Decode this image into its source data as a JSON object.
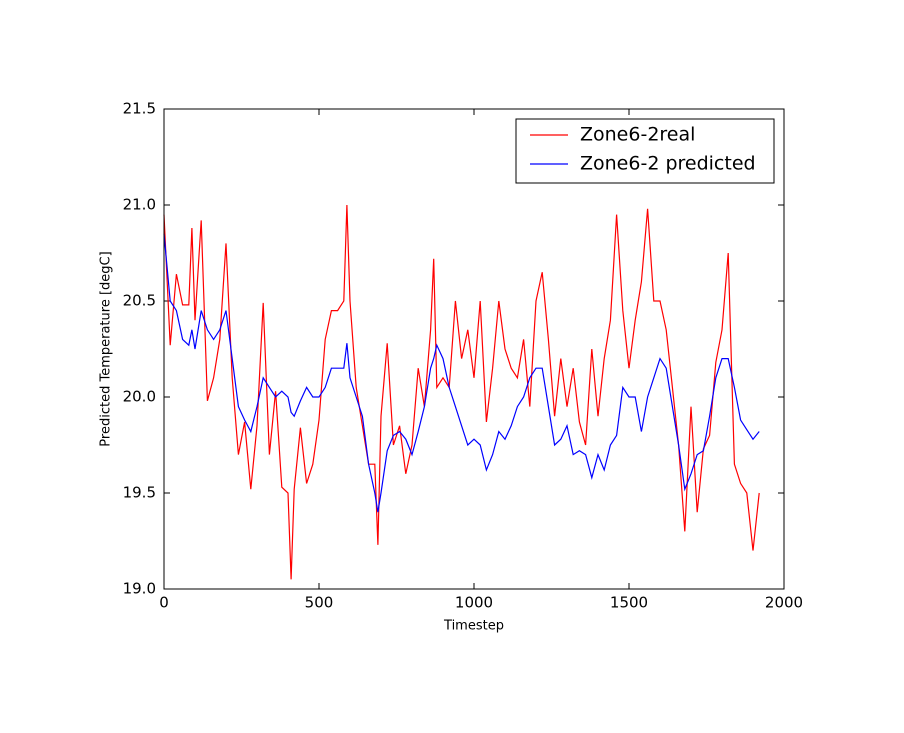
{
  "chart_data": {
    "type": "line",
    "xlabel": "Timestep",
    "ylabel": "Predicted Temperature [degC]",
    "x": [
      0,
      20,
      40,
      60,
      80,
      90,
      100,
      120,
      140,
      160,
      180,
      200,
      220,
      240,
      260,
      280,
      300,
      320,
      340,
      360,
      380,
      400,
      410,
      420,
      440,
      460,
      480,
      500,
      520,
      540,
      560,
      580,
      590,
      600,
      620,
      640,
      660,
      680,
      690,
      700,
      720,
      740,
      760,
      780,
      800,
      820,
      840,
      860,
      870,
      880,
      900,
      920,
      940,
      960,
      980,
      1000,
      1020,
      1040,
      1060,
      1080,
      1100,
      1120,
      1140,
      1160,
      1180,
      1200,
      1220,
      1240,
      1260,
      1280,
      1300,
      1320,
      1340,
      1360,
      1380,
      1400,
      1420,
      1440,
      1460,
      1480,
      1500,
      1520,
      1540,
      1560,
      1580,
      1600,
      1620,
      1640,
      1660,
      1680,
      1700,
      1720,
      1740,
      1760,
      1780,
      1800,
      1820,
      1840,
      1860,
      1880,
      1900,
      1920
    ],
    "series": [
      {
        "name": "Zone6-2real",
        "color": "#ff0000",
        "values": [
          20.95,
          20.27,
          20.64,
          20.48,
          20.48,
          20.88,
          20.4,
          20.92,
          19.98,
          20.1,
          20.3,
          20.8,
          20.1,
          19.7,
          19.87,
          19.52,
          19.85,
          20.49,
          19.7,
          20.03,
          19.53,
          19.5,
          19.05,
          19.52,
          19.84,
          19.55,
          19.65,
          19.88,
          20.3,
          20.45,
          20.45,
          20.5,
          21.0,
          20.5,
          20.05,
          19.85,
          19.65,
          19.65,
          19.23,
          19.9,
          20.28,
          19.75,
          19.85,
          19.6,
          19.75,
          20.15,
          19.95,
          20.35,
          20.72,
          20.05,
          20.1,
          20.05,
          20.5,
          20.2,
          20.35,
          20.1,
          20.5,
          19.87,
          20.15,
          20.5,
          20.25,
          20.15,
          20.1,
          20.3,
          19.95,
          20.5,
          20.65,
          20.3,
          19.9,
          20.2,
          19.95,
          20.15,
          19.87,
          19.75,
          20.25,
          19.9,
          20.2,
          20.4,
          20.95,
          20.45,
          20.15,
          20.4,
          20.6,
          20.98,
          20.5,
          20.5,
          20.35,
          20.05,
          19.75,
          19.3,
          19.95,
          19.4,
          19.73,
          19.8,
          20.18,
          20.35,
          20.75,
          19.65,
          19.55,
          19.5,
          19.2,
          19.5
        ]
      },
      {
        "name": "Zone6-2 predicted",
        "color": "#0000ff",
        "values": [
          20.85,
          20.5,
          20.45,
          20.3,
          20.27,
          20.35,
          20.25,
          20.45,
          20.35,
          20.3,
          20.35,
          20.45,
          20.2,
          19.95,
          19.88,
          19.82,
          19.95,
          20.1,
          20.05,
          20.0,
          20.03,
          20.0,
          19.92,
          19.9,
          19.98,
          20.05,
          20.0,
          20.0,
          20.05,
          20.15,
          20.15,
          20.15,
          20.28,
          20.1,
          20.0,
          19.9,
          19.65,
          19.5,
          19.4,
          19.5,
          19.72,
          19.8,
          19.82,
          19.78,
          19.7,
          19.82,
          19.95,
          20.15,
          20.2,
          20.27,
          20.2,
          20.05,
          19.95,
          19.85,
          19.75,
          19.78,
          19.75,
          19.62,
          19.7,
          19.82,
          19.78,
          19.85,
          19.95,
          20.0,
          20.1,
          20.15,
          20.15,
          19.95,
          19.75,
          19.78,
          19.85,
          19.7,
          19.72,
          19.7,
          19.58,
          19.7,
          19.62,
          19.75,
          19.8,
          20.05,
          20.0,
          20.0,
          19.82,
          20.0,
          20.1,
          20.2,
          20.15,
          19.95,
          19.75,
          19.52,
          19.6,
          19.7,
          19.72,
          19.9,
          20.1,
          20.2,
          20.2,
          20.05,
          19.88,
          19.83,
          19.78,
          19.82
        ]
      }
    ],
    "xlim": [
      0,
      2000
    ],
    "xticks": [
      0,
      500,
      1000,
      1500,
      2000
    ],
    "ylim": [
      19,
      21.5
    ],
    "yticks": [
      {
        "value": 19,
        "label": "19.0"
      },
      19.5,
      {
        "value": 20,
        "label": "20.0"
      },
      20.5,
      {
        "value": 21,
        "label": "21.0"
      },
      21.5
    ],
    "legend": "upper right",
    "grid": false
  }
}
